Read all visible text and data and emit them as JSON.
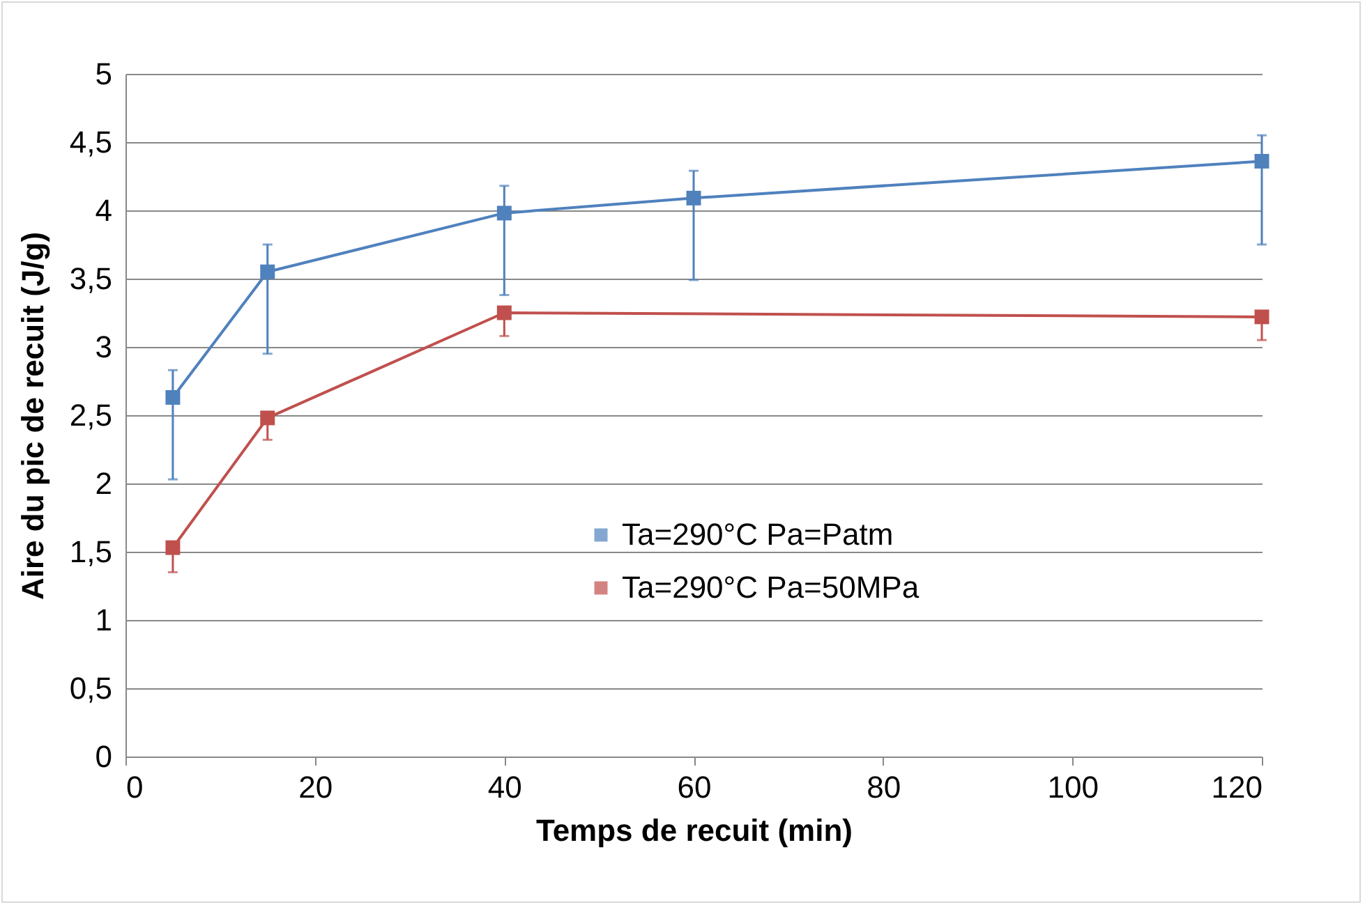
{
  "chart_data": {
    "type": "line",
    "xlabel": "Temps de recuit (min)",
    "ylabel": "Aire du pic de recuit (J/g)",
    "xlim": [
      0,
      120
    ],
    "xticks": [
      0,
      20,
      40,
      60,
      80,
      100,
      120
    ],
    "ylim": [
      0,
      5
    ],
    "yticks": [
      0,
      {
        "value": 0.5,
        "label": "0,5"
      },
      1,
      {
        "value": 1.5,
        "label": "1,5"
      },
      2,
      {
        "value": 2.5,
        "label": "2,5"
      },
      3,
      {
        "value": 3.5,
        "label": "3,5"
      },
      4,
      {
        "value": 4.5,
        "label": "4,5"
      },
      5
    ],
    "grid": "y",
    "legend": "right",
    "marker": "square",
    "series": [
      {
        "name": "Ta=290°C Pa=Patm",
        "color": "#4f81bd",
        "x": [
          5,
          15,
          40,
          60,
          120
        ],
        "values": [
          2.63,
          3.55,
          3.98,
          4.09,
          4.36
        ],
        "errors": [
          [
            2.03,
            2.83
          ],
          [
            2.95,
            3.75
          ],
          [
            3.38,
            4.18
          ],
          [
            3.49,
            4.29
          ],
          [
            3.75,
            4.55
          ]
        ]
      },
      {
        "name": "Ta=290°C Pa=50MPa",
        "color": "#c0504d",
        "x": [
          5,
          15,
          40,
          120
        ],
        "values": [
          1.53,
          2.48,
          3.25,
          3.22
        ],
        "errors": [
          [
            1.35,
            1.53
          ],
          [
            2.32,
            2.48
          ],
          [
            3.08,
            3.25
          ],
          [
            3.05,
            3.22
          ]
        ]
      }
    ]
  }
}
